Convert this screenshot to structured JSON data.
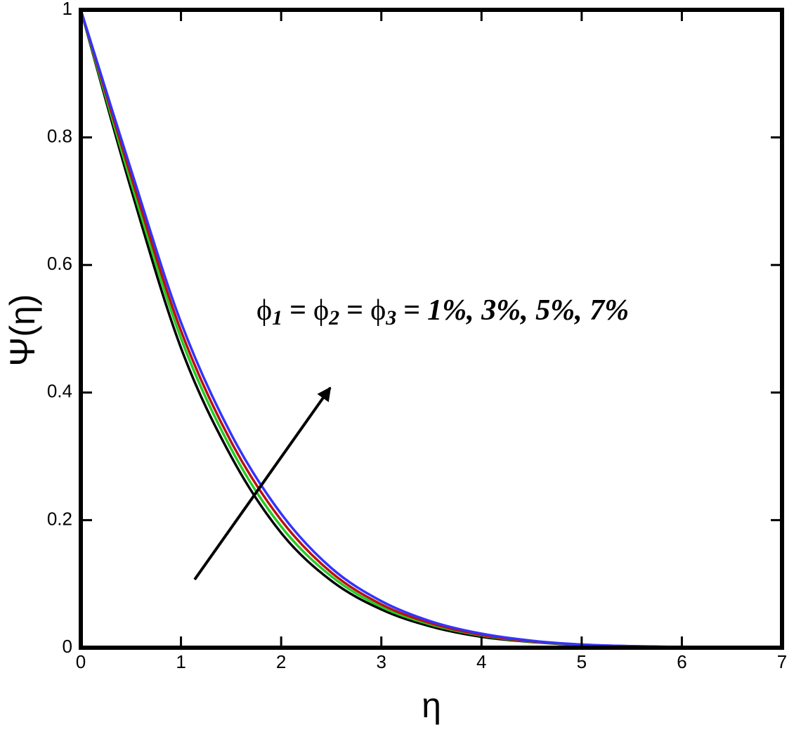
{
  "chart_data": {
    "type": "line",
    "xlabel": "η",
    "ylabel": "Ψ(η)",
    "x": [
      0,
      0.5,
      1,
      1.5,
      2,
      2.5,
      3,
      3.5,
      4,
      4.5,
      5,
      5.5,
      6,
      6.5,
      7
    ],
    "series": [
      {
        "color": "#000000",
        "values": [
          1,
          0.72,
          0.47,
          0.3,
          0.18,
          0.105,
          0.06,
          0.033,
          0.017,
          0.009,
          0.004,
          0.002,
          0.001,
          0,
          0
        ]
      },
      {
        "color": "#22cc22",
        "values": [
          1,
          0.73,
          0.485,
          0.312,
          0.19,
          0.112,
          0.064,
          0.036,
          0.019,
          0.0095,
          0.0045,
          0.002,
          0.001,
          0,
          0
        ]
      },
      {
        "color": "#bb1111",
        "values": [
          1,
          0.74,
          0.497,
          0.323,
          0.2,
          0.118,
          0.068,
          0.038,
          0.02,
          0.01,
          0.0048,
          0.0022,
          0.001,
          0,
          0
        ]
      },
      {
        "color": "#3333ff",
        "values": [
          1,
          0.75,
          0.51,
          0.335,
          0.21,
          0.125,
          0.073,
          0.041,
          0.022,
          0.011,
          0.005,
          0.0025,
          0.001,
          0,
          0
        ]
      }
    ],
    "annotation": {
      "terms": [
        {
          "symbol": "ϕ",
          "sub": "1"
        },
        {
          "symbol": "ϕ",
          "sub": "2"
        },
        {
          "symbol": "ϕ",
          "sub": "3"
        }
      ],
      "equals": "=",
      "values": "1%, 3%, 5%, 7%"
    },
    "xlim": [
      0,
      7
    ],
    "xticks": [
      0,
      1,
      2,
      3,
      4,
      5,
      6,
      7
    ],
    "ylim": [
      0,
      1
    ],
    "yticks": [
      0,
      0.2,
      0.4,
      0.6,
      0.8,
      1
    ],
    "grid": false
  }
}
